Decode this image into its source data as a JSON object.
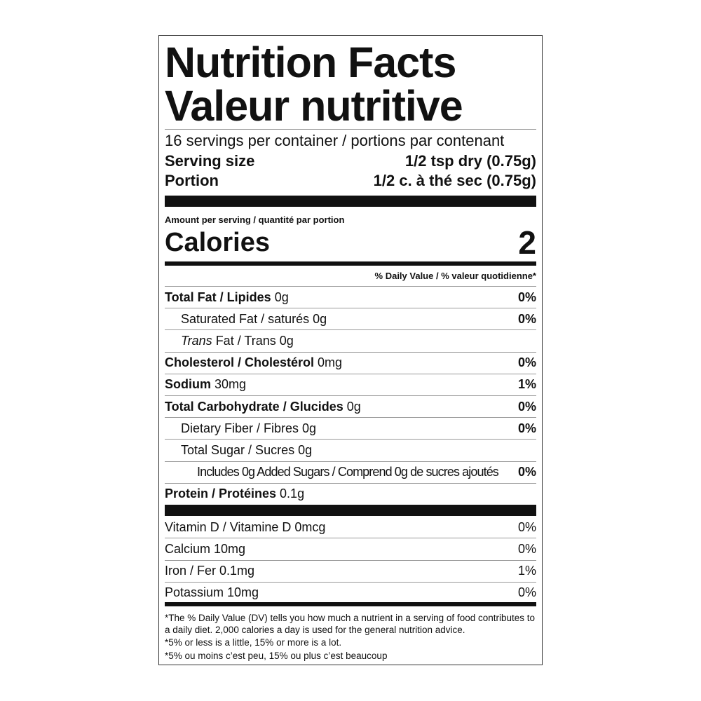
{
  "title_en": "Nutrition Facts",
  "title_fr": "Valeur nutritive",
  "servings": "16 servings per container / portions par contenant",
  "serving_size": {
    "label": "Serving size",
    "value": "1/2 tsp dry (0.75g)"
  },
  "portion": {
    "label": "Portion",
    "value": "1/2 c. à thé sec (0.75g)"
  },
  "amount_per_serving": "Amount per serving / quantité par portion",
  "calories": {
    "label": "Calories",
    "value": "2"
  },
  "dv_header": "% Daily Value / % valeur quotidienne*",
  "nutrients": [
    {
      "bold": "Total Fat / Lipides",
      "italic": "",
      "text": " 0g",
      "dv": "0%",
      "indent": 0
    },
    {
      "bold": "",
      "italic": "",
      "text": "Saturated Fat / saturés 0g",
      "dv": "0%",
      "indent": 1
    },
    {
      "bold": "",
      "italic": "Trans",
      "text": " Fat / Trans 0g",
      "dv": "",
      "indent": 1
    },
    {
      "bold": "Cholesterol / Cholestérol",
      "italic": "",
      "text": " 0mg",
      "dv": "0%",
      "indent": 0
    },
    {
      "bold": "Sodium",
      "italic": "",
      "text": " 30mg",
      "dv": "1%",
      "indent": 0
    },
    {
      "bold": "Total Carbohydrate / Glucides",
      "italic": "",
      "text": " 0g",
      "dv": "0%",
      "indent": 0
    },
    {
      "bold": "",
      "italic": "",
      "text": "Dietary Fiber / Fibres 0g",
      "dv": "0%",
      "indent": 1
    },
    {
      "bold": "",
      "italic": "",
      "text": "Total Sugar / Sucres 0g",
      "dv": "",
      "indent": 1
    },
    {
      "bold": "",
      "italic": "",
      "text": "Includes 0g Added Sugars / Comprend 0g de sucres ajoutés",
      "dv": "0%",
      "indent": 2
    },
    {
      "bold": "Protein / Protéines",
      "italic": "",
      "text": " 0.1g",
      "dv": "",
      "indent": 0
    }
  ],
  "vitamins": [
    {
      "text": "Vitamin D / Vitamine D 0mcg",
      "dv": "0%"
    },
    {
      "text": "Calcium 10mg",
      "dv": "0%"
    },
    {
      "text": "Iron / Fer 0.1mg",
      "dv": "1%"
    },
    {
      "text": "Potassium 10mg",
      "dv": "0%"
    }
  ],
  "footnotes": [
    "*The % Daily Value (DV) tells you how much a nutrient in a serving of food contributes to a daily diet. 2,000 calories a day is used for the general nutrition advice.",
    "*5% or less is a little, 15% or more is a lot.",
    "*5% ou moins c’est peu, 15% ou plus c’est beaucoup"
  ]
}
